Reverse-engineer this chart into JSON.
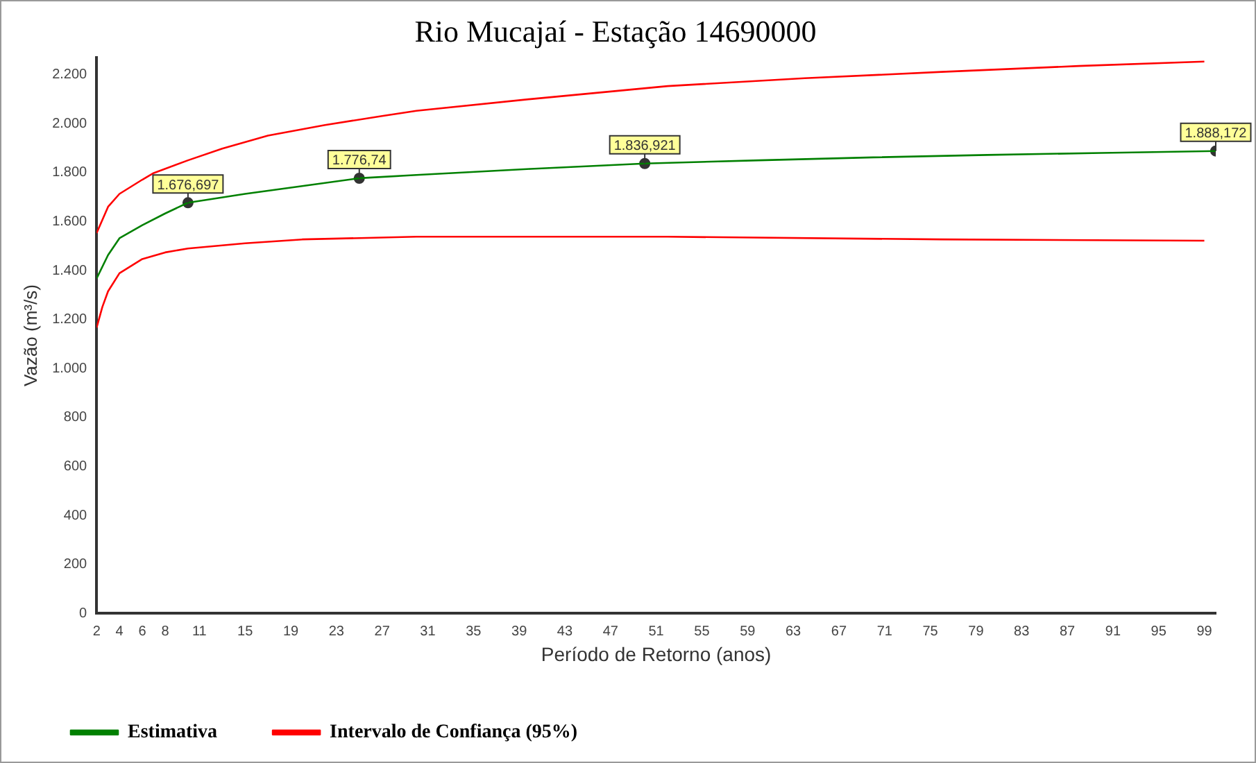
{
  "chart_data": {
    "type": "line",
    "title": "Rio Mucajaí - Estação 14690000",
    "xlabel": "Período de Retorno (anos)",
    "ylabel": "Vazão (m³/s)",
    "xlim": [
      2,
      100
    ],
    "xticks": [
      2,
      4,
      6,
      8,
      11,
      15,
      19,
      23,
      27,
      31,
      35,
      39,
      43,
      47,
      51,
      55,
      59,
      63,
      67,
      71,
      75,
      79,
      83,
      87,
      91,
      95,
      99
    ],
    "ylim": [
      0,
      2270
    ],
    "yticks": [
      {
        "value": 0,
        "label": "0"
      },
      {
        "value": 200,
        "label": "200"
      },
      {
        "value": 400,
        "label": "400"
      },
      {
        "value": 600,
        "label": "600"
      },
      {
        "value": 800,
        "label": "800"
      },
      {
        "value": 1000,
        "label": "1.000"
      },
      {
        "value": 1200,
        "label": "1.200"
      },
      {
        "value": 1400,
        "label": "1.400"
      },
      {
        "value": 1600,
        "label": "1.600"
      },
      {
        "value": 1800,
        "label": "1.800"
      },
      {
        "value": 2000,
        "label": "2.000"
      },
      {
        "value": 2200,
        "label": "2.200"
      }
    ],
    "grid": false,
    "legend": "bottom",
    "marker": "none",
    "line_style": "solid",
    "series": [
      {
        "name": "Estimativa",
        "color": "#008000",
        "x": [
          2,
          3,
          4,
          6,
          8,
          10,
          15,
          20,
          25,
          30,
          40,
          50,
          60,
          70,
          80,
          90,
          100
        ],
        "values": [
          1368,
          1463,
          1532,
          1585,
          1633,
          1677,
          1713,
          1745,
          1777,
          1790,
          1815,
          1837,
          1850,
          1862,
          1872,
          1880,
          1888
        ]
      },
      {
        "name": "Intervalo de Confiança (95%)",
        "color": "#ff0000",
        "x": [
          2,
          3,
          4,
          6,
          7,
          10,
          13,
          17,
          22,
          27,
          30,
          40,
          52,
          64,
          76,
          88,
          99
        ],
        "values": [
          1553,
          1660,
          1713,
          1771,
          1798,
          1850,
          1898,
          1951,
          1994,
          2031,
          2052,
          2100,
          2153,
          2185,
          2211,
          2235,
          2253
        ]
      },
      {
        "color": "#ff0000",
        "x": [
          2,
          2.5,
          3,
          4,
          6,
          8,
          10,
          15,
          20,
          30,
          52,
          76,
          99
        ],
        "values": [
          1167,
          1251,
          1315,
          1389,
          1447,
          1474,
          1490,
          1511,
          1527,
          1538,
          1538,
          1527,
          1522
        ]
      },
      {
        "type": "scatter",
        "color": "#333333",
        "marker": "circle",
        "x": [
          10,
          25,
          50,
          100
        ],
        "values": [
          1676.697,
          1776.74,
          1836.921,
          1888.172
        ],
        "value_labels": [
          "1.676,697",
          "1.776,74",
          "1.836,921",
          "1.888,172"
        ]
      }
    ]
  }
}
